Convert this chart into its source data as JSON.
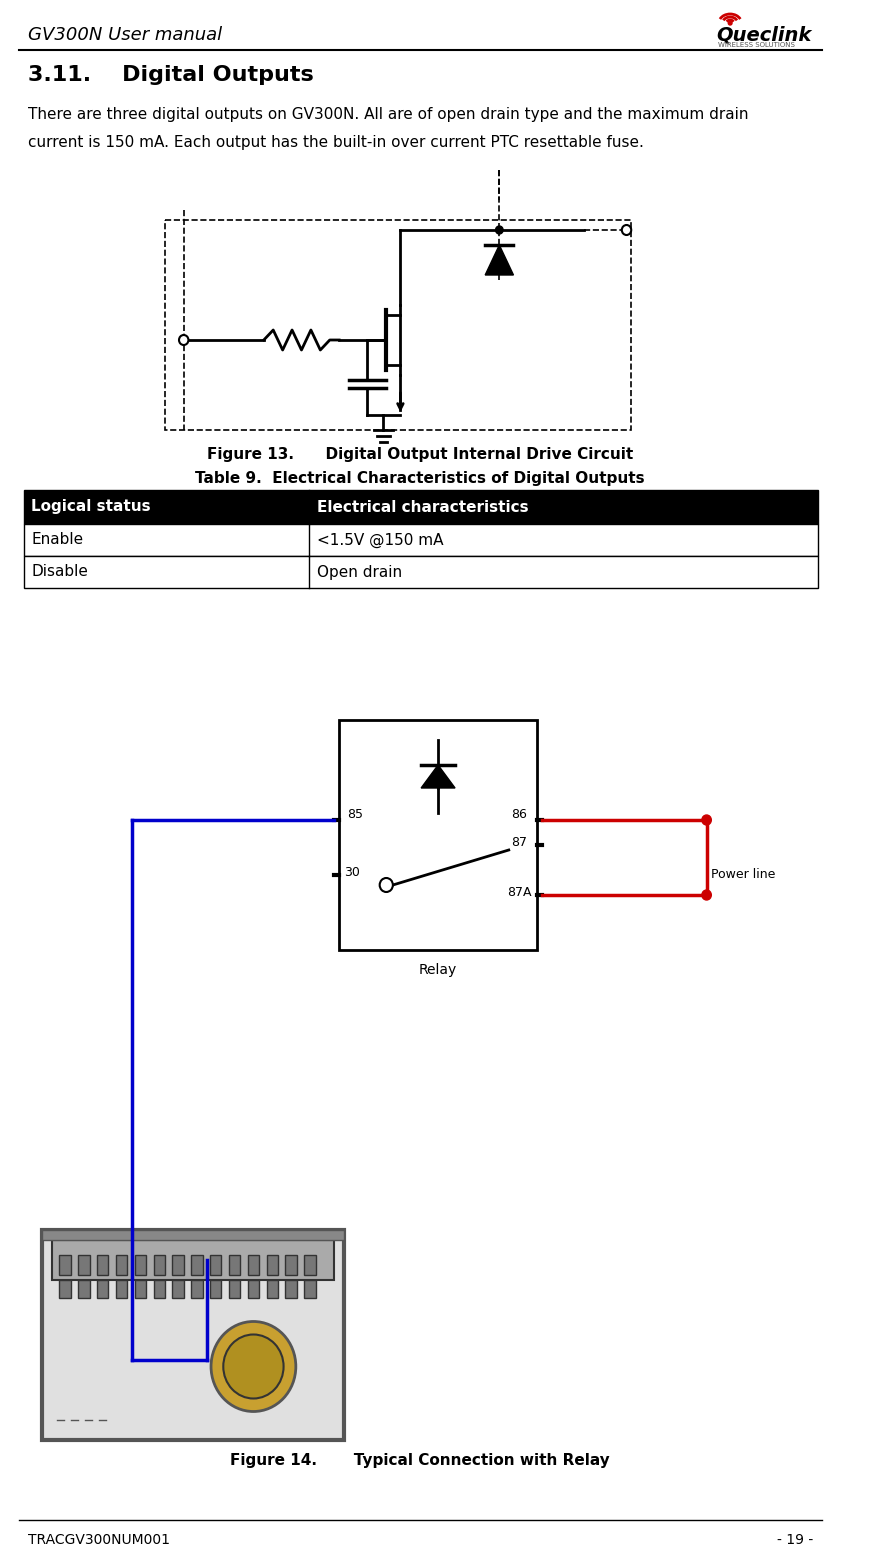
{
  "title_header": "GV300N User manual",
  "logo_text": "Queclink",
  "section": "3.11.    Digital Outputs",
  "body_text": "There are three digital outputs on GV300N. All are of open drain type and the maximum drain\ncurrent is 150 mA. Each output has the built-in over current PTC resettable fuse.",
  "fig13_caption": "Figure 13.      Digital Output Internal Drive Circuit",
  "table_title": "Table 9.  Electrical Characteristics of Digital Outputs",
  "table_headers": [
    "Logical status",
    "Electrical characteristics"
  ],
  "table_rows": [
    [
      "Enable",
      "<1.5V @150 mA"
    ],
    [
      "Disable",
      "Open drain"
    ]
  ],
  "fig14_caption": "Figure 14.       Typical Connection with Relay",
  "footer_left": "TRACGV300NUM001",
  "footer_right": "- 19 -",
  "bg_color": "#ffffff",
  "text_color": "#000000",
  "header_line_color": "#000000",
  "table_header_bg": "#000000",
  "table_header_fg": "#ffffff",
  "table_border_color": "#000000"
}
